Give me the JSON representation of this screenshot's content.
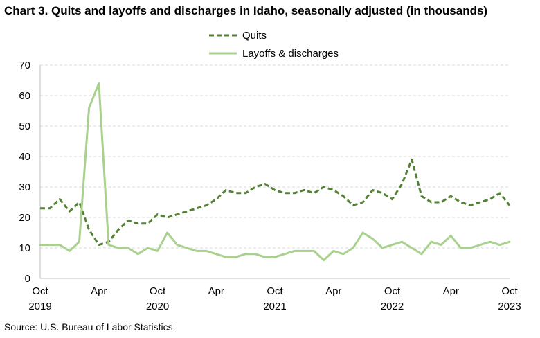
{
  "title": "Chart 3. Quits and layoffs and discharges in Idaho, seasonally adjusted (in thousands)",
  "source": "Source: U.S. Bureau of Labor Statistics.",
  "colors": {
    "quits": "#548235",
    "layoffs": "#a9d18e",
    "grid": "#d9d9d9",
    "axis": "#bfbfbf"
  },
  "chart_data": {
    "type": "line",
    "ylim": [
      0,
      70
    ],
    "yticks": [
      0,
      10,
      20,
      30,
      40,
      50,
      60,
      70
    ],
    "grid": true,
    "legend_position": "top-center",
    "x": [
      "2019-10",
      "2019-11",
      "2019-12",
      "2020-01",
      "2020-02",
      "2020-03",
      "2020-04",
      "2020-05",
      "2020-06",
      "2020-07",
      "2020-08",
      "2020-09",
      "2020-10",
      "2020-11",
      "2020-12",
      "2021-01",
      "2021-02",
      "2021-03",
      "2021-04",
      "2021-05",
      "2021-06",
      "2021-07",
      "2021-08",
      "2021-09",
      "2021-10",
      "2021-11",
      "2021-12",
      "2022-01",
      "2022-02",
      "2022-03",
      "2022-04",
      "2022-05",
      "2022-06",
      "2022-07",
      "2022-08",
      "2022-09",
      "2022-10",
      "2022-11",
      "2022-12",
      "2023-01",
      "2023-02",
      "2023-03",
      "2023-04",
      "2023-05",
      "2023-06",
      "2023-07",
      "2023-08",
      "2023-09",
      "2023-10"
    ],
    "xtick_labels": [
      {
        "index": 0,
        "line1": "Oct",
        "line2": "2019"
      },
      {
        "index": 6,
        "line1": "Apr",
        "line2": ""
      },
      {
        "index": 12,
        "line1": "Oct",
        "line2": "2020"
      },
      {
        "index": 18,
        "line1": "Apr",
        "line2": ""
      },
      {
        "index": 24,
        "line1": "Oct",
        "line2": "2021"
      },
      {
        "index": 30,
        "line1": "Apr",
        "line2": ""
      },
      {
        "index": 36,
        "line1": "Oct",
        "line2": "2022"
      },
      {
        "index": 42,
        "line1": "Apr",
        "line2": ""
      },
      {
        "index": 48,
        "line1": "Oct",
        "line2": "2023"
      }
    ],
    "series": [
      {
        "name": "Quits",
        "style": "dashed",
        "values": [
          23,
          23,
          26,
          22,
          25,
          16,
          11,
          12,
          16,
          19,
          18,
          18,
          21,
          20,
          21,
          22,
          23,
          24,
          26,
          29,
          28,
          28,
          30,
          31,
          29,
          28,
          28,
          29,
          28,
          30,
          29,
          27,
          24,
          25,
          29,
          28,
          26,
          31,
          39,
          27,
          25,
          25,
          27,
          25,
          24,
          25,
          26,
          28,
          24
        ]
      },
      {
        "name": "Layoffs & discharges",
        "style": "solid",
        "values": [
          11,
          11,
          11,
          9,
          12,
          56,
          64,
          11,
          10,
          10,
          8,
          10,
          9,
          15,
          11,
          10,
          9,
          9,
          8,
          7,
          7,
          8,
          8,
          7,
          7,
          8,
          9,
          9,
          9,
          6,
          9,
          8,
          10,
          15,
          13,
          10,
          11,
          12,
          10,
          8,
          12,
          11,
          14,
          10,
          10,
          11,
          12,
          11,
          12
        ]
      }
    ]
  }
}
